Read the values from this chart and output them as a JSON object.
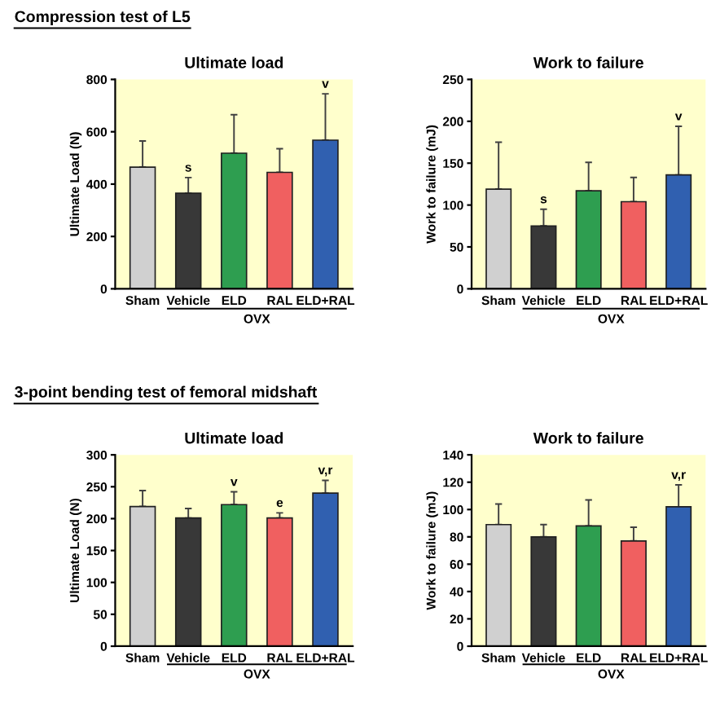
{
  "chart_data": [
    {
      "type": "bar",
      "subtitle": "Compression test of L5",
      "title": "Ultimate load",
      "ylabel": "Ultimate Load (N)",
      "categories": [
        "Sham",
        "Vehicle",
        "ELD",
        "RAL",
        "ELD+RAL"
      ],
      "values": [
        465,
        365,
        518,
        445,
        568
      ],
      "errors": [
        [
          465,
          565
        ],
        [
          365,
          425
        ],
        [
          518,
          665
        ],
        [
          445,
          535
        ],
        [
          568,
          745
        ]
      ],
      "colors": [
        "#d0d0d0",
        "#383838",
        "#2e9e50",
        "#f06060",
        "#3060b0"
      ],
      "ylim": [
        0,
        800
      ],
      "yticks": [
        0,
        200,
        400,
        600,
        800
      ],
      "annotations": [
        {
          "text": "s",
          "x": "Vehicle",
          "y": 425
        },
        {
          "text": "v",
          "x": "ELD+RAL",
          "y": 745
        },
        "OVX"
      ]
    },
    {
      "type": "bar",
      "title": "Work to failure",
      "ylabel": "Work to failure (mJ)",
      "categories": [
        "Sham",
        "Vehicle",
        "ELD",
        "RAL",
        "ELD+RAL"
      ],
      "values": [
        119,
        75,
        117,
        104,
        136
      ],
      "errors": [
        [
          119,
          175
        ],
        [
          75,
          95
        ],
        [
          117,
          151
        ],
        [
          104,
          133
        ],
        [
          136,
          194
        ]
      ],
      "colors": [
        "#d0d0d0",
        "#383838",
        "#2e9e50",
        "#f06060",
        "#3060b0"
      ],
      "ylim": [
        0,
        250
      ],
      "yticks": [
        0,
        50,
        100,
        150,
        200,
        250
      ],
      "annotations": [
        {
          "text": "s",
          "x": "Vehicle",
          "y": 95
        },
        {
          "text": "v",
          "x": "ELD+RAL",
          "y": 194
        },
        "OVX"
      ]
    },
    {
      "type": "bar",
      "subtitle": "3-point bending test of femoral midshaft",
      "title": "Ultimate load",
      "ylabel": "Ultimate Load (N)",
      "categories": [
        "Sham",
        "Vehicle",
        "ELD",
        "RAL",
        "ELD+RAL"
      ],
      "values": [
        219,
        201,
        222,
        201,
        240
      ],
      "errors": [
        [
          219,
          244
        ],
        [
          201,
          216
        ],
        [
          222,
          242
        ],
        [
          201,
          209
        ],
        [
          240,
          260
        ]
      ],
      "colors": [
        "#d0d0d0",
        "#383838",
        "#2e9e50",
        "#f06060",
        "#3060b0"
      ],
      "ylim": [
        0,
        300
      ],
      "yticks": [
        0,
        50,
        100,
        150,
        200,
        250,
        300
      ],
      "annotations": [
        {
          "text": "v",
          "x": "ELD",
          "y": 242
        },
        {
          "text": "e",
          "x": "RAL",
          "y": 209
        },
        {
          "text": "v,r",
          "x": "ELD+RAL",
          "y": 260
        },
        "OVX"
      ]
    },
    {
      "type": "bar",
      "title": "Work to failure",
      "ylabel": "Work to failure (mJ)",
      "categories": [
        "Sham",
        "Vehicle",
        "ELD",
        "RAL",
        "ELD+RAL"
      ],
      "values": [
        89,
        80,
        88,
        77,
        102
      ],
      "errors": [
        [
          89,
          104
        ],
        [
          80,
          89
        ],
        [
          88,
          107
        ],
        [
          77,
          87
        ],
        [
          102,
          118
        ]
      ],
      "colors": [
        "#d0d0d0",
        "#383838",
        "#2e9e50",
        "#f06060",
        "#3060b0"
      ],
      "ylim": [
        0,
        140
      ],
      "yticks": [
        0,
        20,
        40,
        60,
        80,
        100,
        120,
        140
      ],
      "annotations": [
        {
          "text": "v,r",
          "x": "ELD+RAL",
          "y": 118
        },
        "OVX"
      ]
    }
  ]
}
